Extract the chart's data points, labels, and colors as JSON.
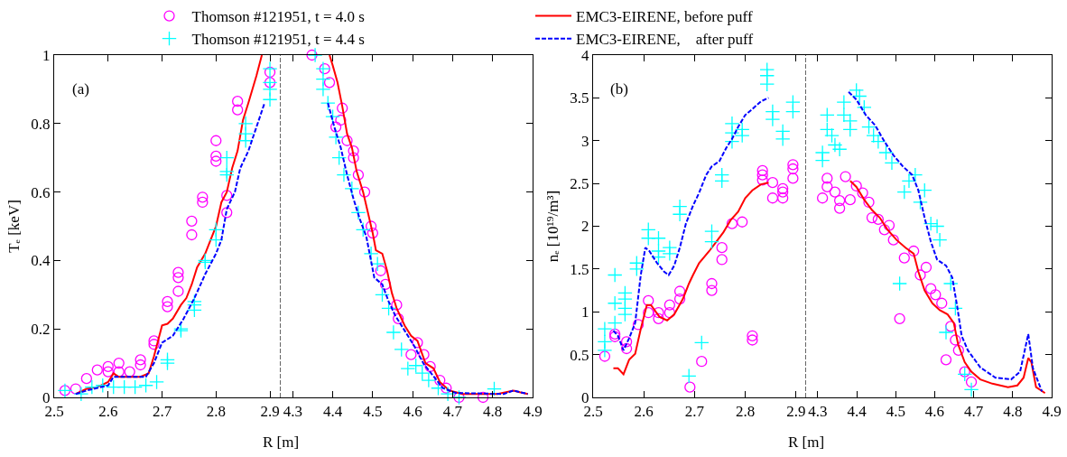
{
  "chart_data": [
    {
      "type": "scatter",
      "ylabel": "Tₑ [keV]",
      "xlabel": "R [m]",
      "annotations": [
        "(a)"
      ],
      "legend": "top",
      "xlim": [
        2.5,
        2.92
      ],
      "xticks": [
        2.5,
        2.6,
        2.7,
        2.8,
        2.9
      ],
      "ylim": [
        0,
        1
      ],
      "yticks": [
        0,
        0.2,
        0.4,
        0.6,
        0.8,
        1
      ],
      "ref_lines": [
        {
          "axis": "x",
          "value": 2.92,
          "color": "#000000",
          "line_style": "dashed"
        }
      ],
      "series": [
        {
          "name": "Thomson #121951, t = 4.0 s",
          "marker": "circle",
          "color": "#ff00ff",
          "x": [
            2.52,
            2.54,
            2.56,
            2.58,
            2.6,
            2.6,
            2.62,
            2.62,
            2.64,
            2.66,
            2.66,
            2.685,
            2.685,
            2.71,
            2.71,
            2.73,
            2.73,
            2.73,
            2.755,
            2.755,
            2.775,
            2.775,
            2.8,
            2.8,
            2.8,
            2.82,
            2.82,
            2.84,
            2.84,
            2.9,
            2.9
          ],
          "values": [
            0.02,
            0.025,
            0.055,
            0.08,
            0.09,
            0.075,
            0.1,
            0.075,
            0.075,
            0.11,
            0.095,
            0.165,
            0.155,
            0.265,
            0.28,
            0.35,
            0.365,
            0.31,
            0.475,
            0.515,
            0.57,
            0.585,
            0.69,
            0.705,
            0.75,
            0.59,
            0.54,
            0.84,
            0.865,
            0.95,
            0.92
          ]
        },
        {
          "name": "EMC3-EIRENE, before puff",
          "type": "line",
          "marker": "none",
          "line_style": "solid",
          "color": "#ff0000",
          "x": [
            2.54,
            2.56,
            2.58,
            2.6,
            2.61,
            2.62,
            2.66,
            2.675,
            2.685,
            2.7,
            2.71,
            2.72,
            2.735,
            2.745,
            2.755,
            2.765,
            2.78,
            2.79,
            2.8,
            2.81,
            2.82,
            2.83,
            2.84,
            2.85,
            2.86,
            2.875,
            2.885
          ],
          "values": [
            0.01,
            0.025,
            0.03,
            0.045,
            0.07,
            0.06,
            0.06,
            0.07,
            0.12,
            0.21,
            0.215,
            0.23,
            0.27,
            0.29,
            0.33,
            0.38,
            0.42,
            0.46,
            0.5,
            0.57,
            0.6,
            0.67,
            0.72,
            0.81,
            0.86,
            0.94,
            1.0
          ]
        },
        {
          "name": "Thomson #121951, t = 4.4 s",
          "marker": "cross",
          "color": "#00ffff",
          "x": [
            2.52,
            2.55,
            2.57,
            2.59,
            2.61,
            2.63,
            2.65,
            2.67,
            2.69,
            2.71,
            2.71,
            2.735,
            2.735,
            2.76,
            2.76,
            2.76,
            2.78,
            2.78,
            2.8,
            2.8,
            2.82,
            2.82,
            2.82,
            2.855,
            2.855,
            2.855,
            2.9,
            2.9,
            2.9,
            2.9
          ],
          "values": [
            0.02,
            0.01,
            0.03,
            0.035,
            0.03,
            0.03,
            0.03,
            0.035,
            0.045,
            0.11,
            0.1,
            0.195,
            0.2,
            0.27,
            0.28,
            0.255,
            0.395,
            0.4,
            0.46,
            0.49,
            0.65,
            0.66,
            0.7,
            0.75,
            0.77,
            0.8,
            0.87,
            0.9,
            0.92,
            0.96
          ]
        },
        {
          "name": "EMC3-EIRENE,    after puff",
          "type": "line",
          "marker": "none",
          "line_style": "dashed",
          "color": "#0000ff",
          "x": [
            2.54,
            2.56,
            2.6,
            2.61,
            2.67,
            2.685,
            2.7,
            2.72,
            2.74,
            2.76,
            2.78,
            2.8,
            2.81,
            2.82,
            2.835,
            2.845,
            2.86,
            2.875,
            2.89
          ],
          "values": [
            0.01,
            0.02,
            0.035,
            0.06,
            0.06,
            0.1,
            0.16,
            0.18,
            0.23,
            0.29,
            0.36,
            0.42,
            0.46,
            0.55,
            0.6,
            0.67,
            0.72,
            0.79,
            0.86
          ]
        }
      ]
    },
    {
      "type": "scatter",
      "tick_labels": "x",
      "xlim": [
        4.27,
        4.9
      ],
      "xticks": [
        4.3,
        4.4,
        4.5,
        4.6,
        4.7,
        4.8,
        4.9
      ],
      "ylim": [
        0,
        1
      ],
      "yticks": [
        0,
        0.2,
        0.4,
        0.6,
        0.8,
        1
      ],
      "series": [
        {
          "marker": "circle",
          "color": "#ff00ff",
          "x": [
            4.348,
            4.38,
            4.392,
            4.424,
            4.42,
            4.408,
            4.436,
            4.452,
            4.452,
            4.464,
            4.48,
            4.496,
            4.5,
            4.52,
            4.532,
            4.56,
            4.564,
            4.596,
            4.612,
            4.628,
            4.644,
            4.668,
            4.684,
            4.716,
            4.776
          ],
          "values": [
            1.0,
            0.96,
            0.92,
            0.845,
            0.81,
            0.79,
            0.75,
            0.72,
            0.7,
            0.65,
            0.6,
            0.5,
            0.48,
            0.37,
            0.33,
            0.27,
            0.23,
            0.125,
            0.16,
            0.125,
            0.09,
            0.05,
            0.027,
            0.0,
            0.0
          ]
        },
        {
          "type": "line",
          "marker": "none",
          "line_style": "solid",
          "color": "#ff0000",
          "x": [
            4.392,
            4.4,
            4.412,
            4.424,
            4.436,
            4.448,
            4.46,
            4.476,
            4.488,
            4.5,
            4.508,
            4.524,
            4.536,
            4.548,
            4.56,
            4.58,
            4.596,
            4.612,
            4.632,
            4.652,
            4.668,
            4.692,
            4.724,
            4.812,
            4.852,
            4.868,
            4.888
          ],
          "values": [
            1.0,
            0.97,
            0.92,
            0.85,
            0.77,
            0.73,
            0.66,
            0.6,
            0.54,
            0.48,
            0.43,
            0.42,
            0.37,
            0.305,
            0.26,
            0.21,
            0.18,
            0.165,
            0.1,
            0.085,
            0.045,
            0.02,
            0.01,
            0.01,
            0.02,
            0.015,
            0.01
          ]
        },
        {
          "marker": "cross",
          "color": "#00ffff",
          "x": [
            4.356,
            4.376,
            4.376,
            4.376,
            4.388,
            4.4,
            4.408,
            4.416,
            4.428,
            4.448,
            4.464,
            4.476,
            4.496,
            4.512,
            4.524,
            4.54,
            4.552,
            4.572,
            4.588,
            4.608,
            4.624,
            4.64,
            4.664,
            4.688,
            4.716,
            4.804
          ],
          "values": [
            1.0,
            0.96,
            0.93,
            0.9,
            0.86,
            0.82,
            0.76,
            0.7,
            0.65,
            0.61,
            0.54,
            0.49,
            0.42,
            0.39,
            0.3,
            0.26,
            0.19,
            0.14,
            0.084,
            0.093,
            0.071,
            0.05,
            0.027,
            0.01,
            0.0,
            0.025
          ]
        },
        {
          "type": "line",
          "marker": "none",
          "line_style": "dashed",
          "color": "#0000ff",
          "x": [
            4.388,
            4.404,
            4.42,
            4.436,
            4.452,
            4.468,
            4.484,
            4.504,
            4.524,
            4.54,
            4.556,
            4.58,
            4.604,
            4.628,
            4.652,
            4.676,
            4.708,
            4.828,
            4.852,
            4.888
          ],
          "values": [
            0.86,
            0.79,
            0.73,
            0.65,
            0.58,
            0.52,
            0.47,
            0.35,
            0.33,
            0.28,
            0.24,
            0.195,
            0.15,
            0.097,
            0.062,
            0.027,
            0.013,
            0.01,
            0.02,
            0.01
          ]
        }
      ]
    },
    {
      "type": "scatter",
      "ylabel": "nₑ [10¹⁹/m³]",
      "xlabel": "R [m]",
      "annotations": [
        "(b)"
      ],
      "xlim": [
        2.5,
        2.92
      ],
      "xticks": [
        2.5,
        2.6,
        2.7,
        2.8,
        2.9
      ],
      "ylim": [
        0,
        4
      ],
      "yticks": [
        0,
        0.5,
        1,
        1.5,
        2,
        2.5,
        3,
        3.5,
        4
      ],
      "ref_lines": [
        {
          "axis": "x",
          "value": 2.92,
          "color": "#000000",
          "line_style": "dashed"
        }
      ],
      "series": [
        {
          "marker": "circle",
          "color": "#ff00ff",
          "x": [
            2.523,
            2.543,
            2.543,
            2.566,
            2.566,
            2.589,
            2.609,
            2.609,
            2.629,
            2.629,
            2.651,
            2.651,
            2.671,
            2.671,
            2.691,
            2.714,
            2.734,
            2.734,
            2.754,
            2.754,
            2.774,
            2.794,
            2.814,
            2.814,
            2.834,
            2.834,
            2.834,
            2.854,
            2.854,
            2.874,
            2.874,
            2.874,
            2.894,
            2.894,
            2.894
          ],
          "values": [
            0.48,
            0.74,
            0.71,
            0.65,
            0.57,
            0.85,
            1.13,
            0.99,
            0.99,
            0.92,
            1.08,
            0.99,
            1.24,
            1.15,
            0.12,
            0.42,
            1.33,
            1.25,
            1.75,
            1.61,
            2.03,
            2.05,
            0.72,
            0.67,
            2.65,
            2.6,
            2.54,
            2.51,
            2.33,
            2.44,
            2.4,
            2.33,
            2.72,
            2.67,
            2.56
          ]
        },
        {
          "type": "line",
          "marker": "none",
          "line_style": "solid",
          "color": "#ff0000",
          "x": [
            2.54,
            2.549,
            2.56,
            2.571,
            2.583,
            2.594,
            2.606,
            2.614,
            2.631,
            2.646,
            2.66,
            2.677,
            2.689,
            2.697,
            2.709,
            2.729,
            2.743,
            2.757,
            2.771,
            2.786,
            2.8,
            2.814,
            2.831,
            2.846
          ],
          "values": [
            0.34,
            0.34,
            0.27,
            0.44,
            0.51,
            0.8,
            1.08,
            1.08,
            0.94,
            0.9,
            0.97,
            1.15,
            1.33,
            1.43,
            1.57,
            1.71,
            1.82,
            1.93,
            2.07,
            2.17,
            2.33,
            2.42,
            2.49,
            2.51
          ]
        },
        {
          "marker": "cross",
          "color": "#00ffff",
          "x": [
            2.523,
            2.523,
            2.523,
            2.543,
            2.543,
            2.543,
            2.563,
            2.563,
            2.563,
            2.563,
            2.586,
            2.586,
            2.609,
            2.609,
            2.629,
            2.629,
            2.629,
            2.651,
            2.651,
            2.671,
            2.671,
            2.689,
            2.714,
            2.734,
            2.734,
            2.754,
            2.754,
            2.774,
            2.774,
            2.774,
            2.794,
            2.794,
            2.843,
            2.843,
            2.843,
            2.854,
            2.854,
            2.874,
            2.874,
            2.894,
            2.894
          ],
          "values": [
            0.8,
            0.65,
            0.55,
            1.43,
            1.1,
            0.87,
            1.22,
            1.15,
            1.04,
            0.97,
            1.57,
            1.5,
            1.96,
            1.86,
            1.86,
            1.71,
            1.64,
            1.75,
            1.68,
            2.23,
            2.14,
            0.25,
            0.64,
            1.94,
            1.82,
            2.6,
            2.53,
            3.2,
            3.09,
            2.99,
            3.13,
            3.06,
            3.83,
            3.76,
            3.66,
            3.34,
            3.25,
            3.11,
            3.02,
            3.45,
            3.34
          ]
        },
        {
          "type": "line",
          "marker": "none",
          "line_style": "dashed",
          "color": "#0000ff",
          "x": [
            2.54,
            2.549,
            2.56,
            2.571,
            2.583,
            2.594,
            2.603,
            2.611,
            2.626,
            2.64,
            2.649,
            2.66,
            2.671,
            2.683,
            2.697,
            2.709,
            2.723,
            2.734,
            2.749,
            2.763,
            2.774,
            2.786,
            2.8,
            2.814,
            2.831,
            2.846
          ],
          "values": [
            0.78,
            0.72,
            0.55,
            0.69,
            0.87,
            1.43,
            1.75,
            1.71,
            1.57,
            1.47,
            1.43,
            1.54,
            1.75,
            2.03,
            2.24,
            2.39,
            2.6,
            2.7,
            2.76,
            2.92,
            3.02,
            3.16,
            3.3,
            3.37,
            3.46,
            3.5
          ]
        }
      ]
    },
    {
      "type": "scatter",
      "tick_labels": "x",
      "xlim": [
        4.27,
        4.9
      ],
      "xticks": [
        4.3,
        4.4,
        4.5,
        4.6,
        4.7,
        4.8,
        4.9
      ],
      "ylim": [
        0,
        4
      ],
      "yticks": [
        0,
        0.5,
        1,
        1.5,
        2,
        2.5,
        3,
        3.5,
        4
      ],
      "series": [
        {
          "marker": "circle",
          "color": "#ff00ff",
          "x": [
            4.312,
            4.324,
            4.324,
            4.344,
            4.356,
            4.356,
            4.371,
            4.383,
            4.399,
            4.415,
            4.431,
            4.439,
            4.455,
            4.471,
            4.483,
            4.494,
            4.51,
            4.522,
            4.546,
            4.563,
            4.578,
            4.59,
            4.602,
            4.618,
            4.629,
            4.641,
            4.653,
            4.661,
            4.677,
            4.694
          ],
          "values": [
            2.33,
            2.56,
            2.46,
            2.4,
            2.3,
            2.21,
            2.58,
            2.31,
            2.47,
            2.39,
            2.28,
            2.1,
            2.08,
            1.96,
            2.01,
            1.84,
            0.92,
            1.63,
            1.71,
            1.43,
            1.52,
            1.27,
            1.2,
            1.1,
            0.44,
            0.83,
            0.67,
            0.55,
            0.3,
            0.18
          ]
        },
        {
          "type": "line",
          "marker": "none",
          "line_style": "solid",
          "color": "#ff0000",
          "x": [
            4.383,
            4.399,
            4.419,
            4.439,
            4.459,
            4.479,
            4.502,
            4.525,
            4.546,
            4.558,
            4.574,
            4.594,
            4.613,
            4.633,
            4.649,
            4.66,
            4.677,
            4.694,
            4.717,
            4.748,
            4.788,
            4.812,
            4.828,
            4.84,
            4.848,
            4.86,
            4.883
          ],
          "values": [
            2.53,
            2.46,
            2.31,
            2.19,
            2.1,
            1.96,
            1.84,
            1.75,
            1.68,
            1.47,
            1.25,
            1.1,
            1.02,
            0.97,
            0.87,
            0.62,
            0.41,
            0.3,
            0.21,
            0.16,
            0.12,
            0.14,
            0.23,
            0.46,
            0.41,
            0.12,
            0.05
          ]
        },
        {
          "marker": "cross",
          "color": "#00ffff",
          "x": [
            4.312,
            4.312,
            4.324,
            4.324,
            4.336,
            4.344,
            4.356,
            4.367,
            4.367,
            4.383,
            4.383,
            4.399,
            4.407,
            4.419,
            4.431,
            4.443,
            4.455,
            4.475,
            4.49,
            4.51,
            4.522,
            4.534,
            4.55,
            4.563,
            4.574,
            4.59,
            4.606,
            4.613,
            4.641,
            4.653,
            4.629,
            4.677,
            4.694
          ],
          "values": [
            2.86,
            2.77,
            3.3,
            3.13,
            3.06,
            2.95,
            2.9,
            3.45,
            3.3,
            3.23,
            3.13,
            3.59,
            3.52,
            3.39,
            3.16,
            3.06,
            2.99,
            2.86,
            2.74,
            1.33,
            2.4,
            2.53,
            2.6,
            2.28,
            2.42,
            2.03,
            2.0,
            1.84,
            1.33,
            1.04,
            0.76,
            0.27,
            0.09
          ]
        },
        {
          "type": "line",
          "marker": "none",
          "line_style": "dashed",
          "color": "#0000ff",
          "x": [
            4.379,
            4.399,
            4.423,
            4.447,
            4.471,
            4.494,
            4.518,
            4.542,
            4.558,
            4.574,
            4.59,
            4.606,
            4.629,
            4.645,
            4.657,
            4.669,
            4.685,
            4.717,
            4.756,
            4.796,
            4.819,
            4.84,
            4.852,
            4.875
          ],
          "values": [
            3.57,
            3.48,
            3.3,
            3.18,
            2.99,
            2.83,
            2.7,
            2.6,
            2.42,
            2.1,
            1.82,
            1.61,
            1.54,
            1.4,
            1.08,
            0.72,
            0.55,
            0.35,
            0.23,
            0.21,
            0.3,
            0.74,
            0.34,
            0.07
          ]
        }
      ]
    }
  ]
}
